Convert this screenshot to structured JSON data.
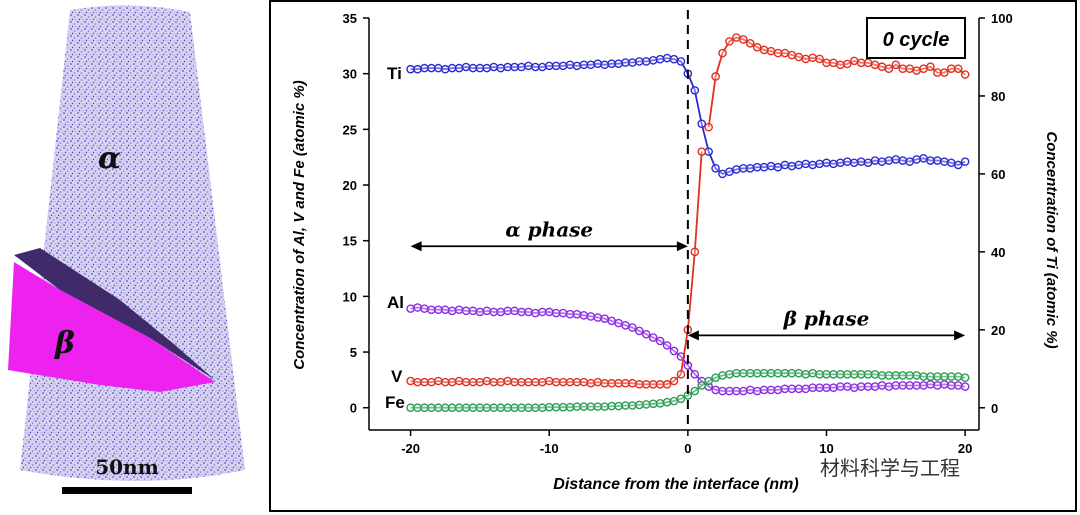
{
  "atom_probe": {
    "alpha_label": "α",
    "beta_label": "β",
    "scale_label": "50nm"
  },
  "watermark": "材料科学与工程",
  "chart_data": {
    "type": "line",
    "title": "0 cycle",
    "xlabel": "Distance from the interface (nm)",
    "ylabel_left": "Concentration of Al, V and Fe (atomic %)",
    "ylabel_right": "Concentration of Ti (atomic %)",
    "xlim": [
      -23,
      21
    ],
    "ylim_left": [
      -2,
      35
    ],
    "ylim_right": [
      -5.7,
      100
    ],
    "xticks": [
      -20,
      -10,
      0,
      10,
      20
    ],
    "xtick_labels": [
      "-20",
      "-10",
      "0",
      "10",
      "20"
    ],
    "yticks_left": [
      0,
      5,
      10,
      15,
      20,
      25,
      30,
      35
    ],
    "ytick_labels_left": [
      "0",
      "5",
      "10",
      "15",
      "20",
      "25",
      "30",
      "35"
    ],
    "yticks_right": [
      0,
      20,
      40,
      60,
      80,
      100
    ],
    "ytick_labels_right": [
      "0",
      "20",
      "40",
      "60",
      "80",
      "100"
    ],
    "interface_x": 0,
    "annotations": {
      "alpha_phase": {
        "text": "α phase",
        "from": -20,
        "to": 0,
        "y": 14.5
      },
      "beta_phase": {
        "text": "β phase",
        "from": 0,
        "to": 20,
        "y": 6.5
      }
    },
    "series_labels": [
      "Ti",
      "Al",
      "V",
      "Fe"
    ],
    "colors": {
      "Ti": "#2a2ad2",
      "Al": "#8a2be2",
      "V": "#e03020",
      "Fe": "#2a9d50",
      "Ti_atomic": "#e03020"
    },
    "series": [
      {
        "name": "Ti",
        "axis": "left",
        "color": "#2a2ad2",
        "x": [
          -20,
          -19.5,
          -19,
          -18.5,
          -18,
          -17.5,
          -17,
          -16.5,
          -16,
          -15.5,
          -15,
          -14.5,
          -14,
          -13.5,
          -13,
          -12.5,
          -12,
          -11.5,
          -11,
          -10.5,
          -10,
          -9.5,
          -9,
          -8.5,
          -8,
          -7.5,
          -7,
          -6.5,
          -6,
          -5.5,
          -5,
          -4.5,
          -4,
          -3.5,
          -3,
          -2.5,
          -2,
          -1.5,
          -1,
          -0.5,
          0,
          0.5,
          1,
          1.5,
          2,
          2.5,
          3,
          3.5,
          4,
          4.5,
          5,
          5.5,
          6,
          6.5,
          7,
          7.5,
          8,
          8.5,
          9,
          9.5,
          10,
          10.5,
          11,
          11.5,
          12,
          12.5,
          13,
          13.5,
          14,
          14.5,
          15,
          15.5,
          16,
          16.5,
          17,
          17.5,
          18,
          18.5,
          19,
          19.5,
          20
        ],
        "values": [
          30.4,
          30.4,
          30.5,
          30.5,
          30.5,
          30.4,
          30.5,
          30.5,
          30.6,
          30.5,
          30.5,
          30.5,
          30.6,
          30.5,
          30.6,
          30.6,
          30.6,
          30.7,
          30.6,
          30.6,
          30.7,
          30.7,
          30.7,
          30.8,
          30.7,
          30.8,
          30.8,
          30.9,
          30.8,
          30.9,
          30.9,
          31.0,
          31.0,
          31.1,
          31.1,
          31.2,
          31.3,
          31.4,
          31.3,
          31.1,
          30.0,
          28.5,
          25.5,
          23.0,
          21.5,
          21.0,
          21.2,
          21.4,
          21.5,
          21.5,
          21.6,
          21.6,
          21.7,
          21.6,
          21.8,
          21.7,
          21.8,
          21.9,
          21.8,
          21.9,
          22.0,
          21.9,
          22.0,
          22.1,
          22.0,
          22.1,
          22.0,
          22.2,
          22.1,
          22.2,
          22.3,
          22.2,
          22.1,
          22.3,
          22.4,
          22.2,
          22.2,
          22.1,
          22.0,
          21.8,
          22.1
        ]
      },
      {
        "name": "Ti (right axis)",
        "axis": "right",
        "color": "#e03020",
        "x": [
          1.5,
          2,
          2.5,
          3,
          3.5,
          4,
          4.5,
          5,
          5.5,
          6,
          6.5,
          7,
          7.5,
          8,
          8.5,
          9,
          9.5,
          10,
          10.5,
          11,
          11.5,
          12,
          12.5,
          13,
          13.5,
          14,
          14.5,
          15,
          15.5,
          16,
          16.5,
          17,
          17.5,
          18,
          18.5,
          19,
          19.5,
          20
        ],
        "values": [
          72,
          85,
          91,
          94,
          95,
          94.5,
          93.5,
          92.5,
          91.8,
          91.5,
          91,
          91,
          90.5,
          90,
          89.5,
          89.8,
          89.5,
          88.5,
          88.5,
          88,
          88.2,
          89,
          88.5,
          88.5,
          88,
          87.5,
          87,
          88,
          87,
          87,
          86.5,
          87,
          87.5,
          86,
          86,
          87,
          87,
          85.5
        ]
      },
      {
        "name": "Al",
        "axis": "left",
        "color": "#8a2be2",
        "x": [
          -20,
          -19.5,
          -19,
          -18.5,
          -18,
          -17.5,
          -17,
          -16.5,
          -16,
          -15.5,
          -15,
          -14.5,
          -14,
          -13.5,
          -13,
          -12.5,
          -12,
          -11.5,
          -11,
          -10.5,
          -10,
          -9.5,
          -9,
          -8.5,
          -8,
          -7.5,
          -7,
          -6.5,
          -6,
          -5.5,
          -5,
          -4.5,
          -4,
          -3.5,
          -3,
          -2.5,
          -2,
          -1.5,
          -1,
          -0.5,
          0,
          0.5,
          1,
          1.5,
          2,
          2.5,
          3,
          3.5,
          4,
          4.5,
          5,
          5.5,
          6,
          6.5,
          7,
          7.5,
          8,
          8.5,
          9,
          9.5,
          10,
          10.5,
          11,
          11.5,
          12,
          12.5,
          13,
          13.5,
          14,
          14.5,
          15,
          15.5,
          16,
          16.5,
          17,
          17.5,
          18,
          18.5,
          19,
          19.5,
          20
        ],
        "values": [
          8.9,
          9.0,
          8.9,
          8.8,
          8.8,
          8.8,
          8.7,
          8.8,
          8.7,
          8.7,
          8.6,
          8.7,
          8.6,
          8.6,
          8.7,
          8.7,
          8.6,
          8.6,
          8.5,
          8.6,
          8.6,
          8.5,
          8.5,
          8.4,
          8.4,
          8.3,
          8.2,
          8.1,
          8.0,
          7.8,
          7.6,
          7.4,
          7.2,
          6.9,
          6.6,
          6.3,
          6.0,
          5.6,
          5.1,
          4.6,
          3.8,
          3.0,
          2.4,
          1.9,
          1.6,
          1.5,
          1.5,
          1.5,
          1.5,
          1.6,
          1.5,
          1.6,
          1.6,
          1.6,
          1.7,
          1.7,
          1.7,
          1.7,
          1.8,
          1.8,
          1.8,
          1.8,
          1.9,
          1.9,
          1.8,
          1.9,
          1.9,
          1.9,
          2.0,
          1.9,
          2.0,
          2.0,
          2.0,
          2.0,
          2.0,
          2.1,
          2.0,
          2.1,
          2.0,
          2.0,
          1.9
        ]
      },
      {
        "name": "V",
        "axis": "left",
        "color": "#e03020",
        "x": [
          -20,
          -19.5,
          -19,
          -18.5,
          -18,
          -17.5,
          -17,
          -16.5,
          -16,
          -15.5,
          -15,
          -14.5,
          -14,
          -13.5,
          -13,
          -12.5,
          -12,
          -11.5,
          -11,
          -10.5,
          -10,
          -9.5,
          -9,
          -8.5,
          -8,
          -7.5,
          -7,
          -6.5,
          -6,
          -5.5,
          -5,
          -4.5,
          -4,
          -3.5,
          -3,
          -2.5,
          -2,
          -1.5,
          -1,
          -0.5,
          0,
          0.5,
          1
        ],
        "values": [
          2.4,
          2.3,
          2.3,
          2.3,
          2.4,
          2.3,
          2.3,
          2.4,
          2.3,
          2.3,
          2.3,
          2.4,
          2.3,
          2.3,
          2.4,
          2.3,
          2.3,
          2.3,
          2.3,
          2.3,
          2.4,
          2.3,
          2.3,
          2.3,
          2.3,
          2.3,
          2.2,
          2.3,
          2.2,
          2.2,
          2.2,
          2.2,
          2.2,
          2.1,
          2.1,
          2.1,
          2.1,
          2.1,
          2.4,
          3.0,
          7.0,
          14.0,
          23.0
        ]
      },
      {
        "name": "Fe",
        "axis": "left",
        "color": "#2a9d50",
        "x": [
          -20,
          -19.5,
          -19,
          -18.5,
          -18,
          -17.5,
          -17,
          -16.5,
          -16,
          -15.5,
          -15,
          -14.5,
          -14,
          -13.5,
          -13,
          -12.5,
          -12,
          -11.5,
          -11,
          -10.5,
          -10,
          -9.5,
          -9,
          -8.5,
          -8,
          -7.5,
          -7,
          -6.5,
          -6,
          -5.5,
          -5,
          -4.5,
          -4,
          -3.5,
          -3,
          -2.5,
          -2,
          -1.5,
          -1,
          -0.5,
          0,
          0.5,
          1,
          1.5,
          2,
          2.5,
          3,
          3.5,
          4,
          4.5,
          5,
          5.5,
          6,
          6.5,
          7,
          7.5,
          8,
          8.5,
          9,
          9.5,
          10,
          10.5,
          11,
          11.5,
          12,
          12.5,
          13,
          13.5,
          14,
          14.5,
          15,
          15.5,
          16,
          16.5,
          17,
          17.5,
          18,
          18.5,
          19,
          19.5,
          20
        ],
        "values": [
          0.0,
          0.0,
          0.0,
          0.0,
          0.0,
          0.0,
          0.0,
          0.0,
          0.0,
          0.0,
          0.0,
          0.0,
          0.0,
          0.0,
          0.0,
          0.0,
          0.0,
          0.0,
          0.0,
          0.0,
          0.05,
          0.05,
          0.05,
          0.05,
          0.1,
          0.1,
          0.1,
          0.1,
          0.1,
          0.15,
          0.15,
          0.2,
          0.2,
          0.25,
          0.3,
          0.35,
          0.4,
          0.5,
          0.6,
          0.8,
          1.1,
          1.5,
          2.0,
          2.4,
          2.7,
          2.9,
          3.0,
          3.1,
          3.1,
          3.1,
          3.1,
          3.1,
          3.1,
          3.1,
          3.1,
          3.1,
          3.1,
          3.0,
          3.1,
          3.0,
          3.0,
          3.0,
          3.0,
          3.0,
          3.0,
          3.0,
          3.0,
          3.0,
          2.9,
          2.9,
          2.9,
          2.9,
          2.9,
          2.9,
          2.8,
          2.8,
          2.8,
          2.8,
          2.8,
          2.8,
          2.7
        ]
      }
    ]
  }
}
